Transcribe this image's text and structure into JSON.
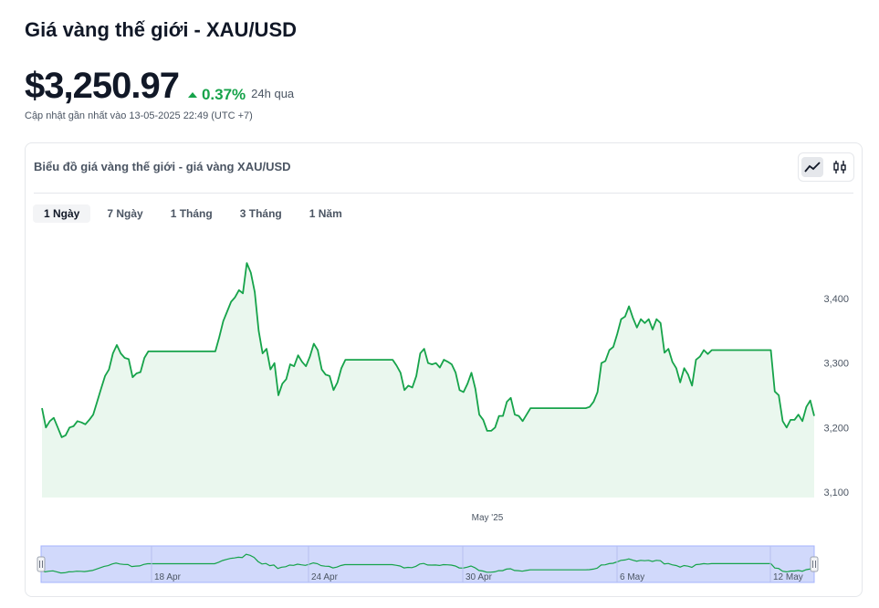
{
  "header": {
    "title": "Giá vàng thế giới - XAU/USD",
    "price": "$3,250.97",
    "change": "0.37%",
    "change_period": "24h qua",
    "updated": "Cập nhật gần nhất vào 13-05-2025 22:49 (UTC +7)"
  },
  "card": {
    "title": "Biểu đồ giá vàng thế giới - giá vàng XAU/USD",
    "tabs": [
      "1 Ngày",
      "7 Ngày",
      "1 Tháng",
      "3 Tháng",
      "1 Năm"
    ],
    "active_tab": 0,
    "icons": [
      "line-chart-icon",
      "candlestick-icon"
    ]
  },
  "colors": {
    "line": "#16a34a",
    "area": "#eaf7ee",
    "navigator": "#d1d9fb",
    "navigator_border": "#a5b4fc"
  },
  "chart_data": {
    "type": "area",
    "ylim": [
      3100,
      3460
    ],
    "yticks": [
      3100,
      3200,
      3300,
      3400
    ],
    "ytick_labels": [
      "3,100",
      "3,200",
      "3,300",
      "3,400"
    ],
    "x_label_main": "May '25",
    "navigator_labels": [
      "18 Apr",
      "24 Apr",
      "30 Apr",
      "6 May",
      "12 May"
    ],
    "values": [
      3230,
      3200,
      3210,
      3215,
      3200,
      3185,
      3188,
      3200,
      3202,
      3210,
      3208,
      3205,
      3212,
      3220,
      3240,
      3260,
      3280,
      3290,
      3315,
      3328,
      3315,
      3308,
      3306,
      3278,
      3284,
      3286,
      3308,
      3318,
      3318,
      3318,
      3318,
      3318,
      3318,
      3318,
      3318,
      3318,
      3318,
      3318,
      3318,
      3318,
      3318,
      3318,
      3318,
      3318,
      3318,
      3340,
      3365,
      3380,
      3395,
      3402,
      3413,
      3408,
      3455,
      3440,
      3410,
      3350,
      3315,
      3322,
      3290,
      3300,
      3250,
      3268,
      3275,
      3298,
      3295,
      3312,
      3302,
      3295,
      3310,
      3330,
      3320,
      3290,
      3282,
      3280,
      3258,
      3270,
      3292,
      3305,
      3305,
      3305,
      3305,
      3305,
      3305,
      3305,
      3305,
      3305,
      3305,
      3305,
      3305,
      3305,
      3296,
      3285,
      3258,
      3265,
      3262,
      3280,
      3315,
      3322,
      3300,
      3298,
      3300,
      3293,
      3305,
      3302,
      3298,
      3285,
      3258,
      3255,
      3268,
      3285,
      3260,
      3220,
      3212,
      3195,
      3195,
      3200,
      3218,
      3218,
      3240,
      3246,
      3220,
      3218,
      3210,
      3220,
      3230,
      3230,
      3230,
      3230,
      3230,
      3230,
      3230,
      3230,
      3230,
      3230,
      3230,
      3230,
      3230,
      3230,
      3230,
      3232,
      3240,
      3255,
      3300,
      3303,
      3320,
      3325,
      3345,
      3368,
      3372,
      3388,
      3370,
      3355,
      3368,
      3362,
      3368,
      3352,
      3368,
      3362,
      3316,
      3322,
      3302,
      3292,
      3270,
      3292,
      3282,
      3265,
      3305,
      3310,
      3320,
      3314,
      3320,
      3320,
      3320,
      3320,
      3320,
      3320,
      3320,
      3320,
      3320,
      3320,
      3320,
      3320,
      3320,
      3320,
      3320,
      3320,
      3256,
      3250,
      3210,
      3200,
      3212,
      3212,
      3220,
      3210,
      3232,
      3242,
      3218
    ]
  }
}
